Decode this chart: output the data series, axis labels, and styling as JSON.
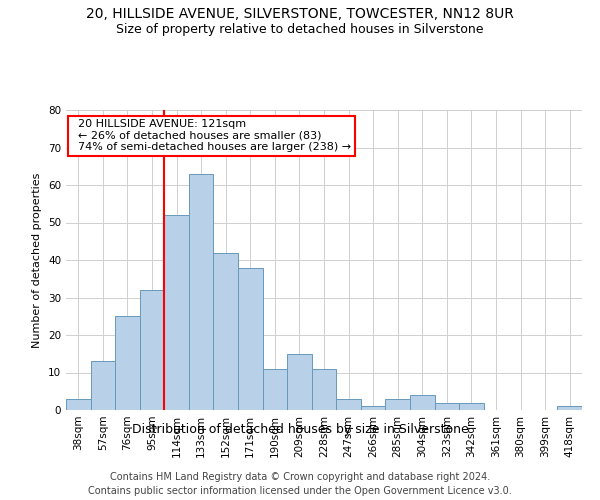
{
  "title": "20, HILLSIDE AVENUE, SILVERSTONE, TOWCESTER, NN12 8UR",
  "subtitle": "Size of property relative to detached houses in Silverstone",
  "xlabel": "Distribution of detached houses by size in Silverstone",
  "ylabel": "Number of detached properties",
  "categories": [
    "38sqm",
    "57sqm",
    "76sqm",
    "95sqm",
    "114sqm",
    "133sqm",
    "152sqm",
    "171sqm",
    "190sqm",
    "209sqm",
    "228sqm",
    "247sqm",
    "266sqm",
    "285sqm",
    "304sqm",
    "323sqm",
    "342sqm",
    "361sqm",
    "380sqm",
    "399sqm",
    "418sqm"
  ],
  "values": [
    3,
    13,
    25,
    32,
    52,
    63,
    42,
    38,
    11,
    15,
    11,
    3,
    1,
    3,
    4,
    2,
    2,
    0,
    0,
    0,
    1
  ],
  "bar_color": "#b8d0e8",
  "bar_edge_color": "#6699bb",
  "red_line_index": 4,
  "annotation_line1": "  20 HILLSIDE AVENUE: 121sqm",
  "annotation_line2": "  ← 26% of detached houses are smaller (83)",
  "annotation_line3": "  74% of semi-detached houses are larger (238) →",
  "annotation_box_color": "white",
  "annotation_box_edge_color": "red",
  "ylim": [
    0,
    80
  ],
  "yticks": [
    0,
    10,
    20,
    30,
    40,
    50,
    60,
    70,
    80
  ],
  "grid_color": "#d0d0d0",
  "footer1": "Contains HM Land Registry data © Crown copyright and database right 2024.",
  "footer2": "Contains public sector information licensed under the Open Government Licence v3.0.",
  "title_fontsize": 10,
  "subtitle_fontsize": 9,
  "xlabel_fontsize": 9,
  "ylabel_fontsize": 8,
  "tick_fontsize": 7.5,
  "annotation_fontsize": 8,
  "footer_fontsize": 7
}
